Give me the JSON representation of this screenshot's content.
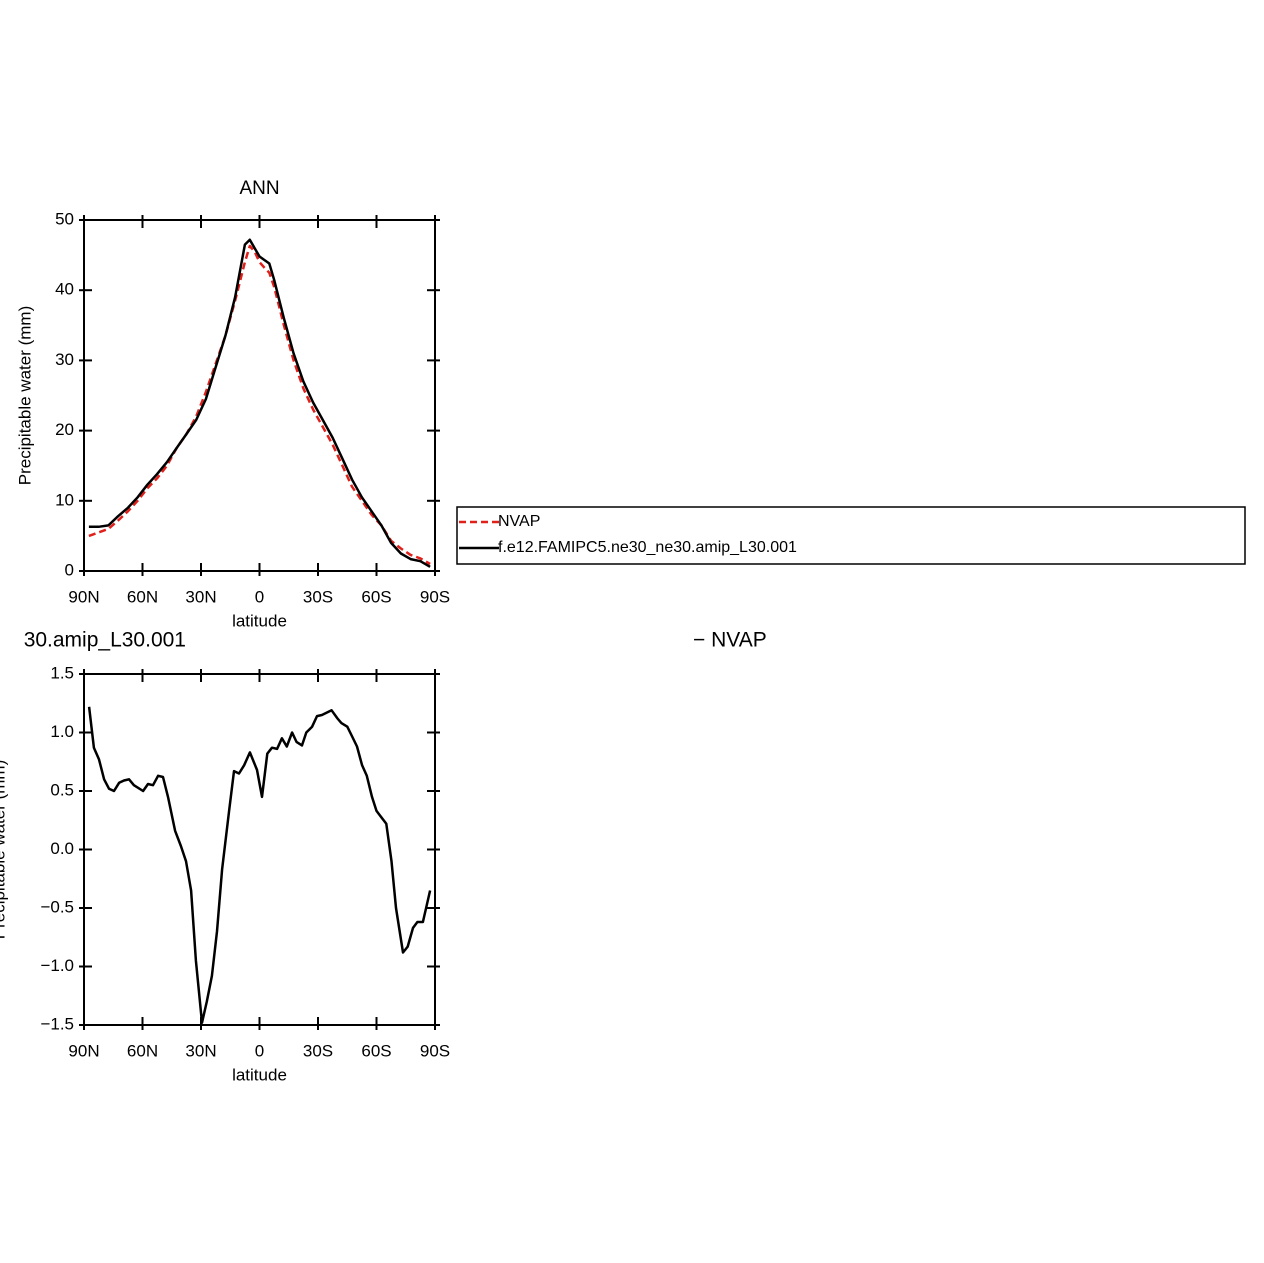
{
  "chart_data": [
    {
      "type": "line",
      "title": "ANN",
      "xlabel": "latitude",
      "ylabel": "Precipitable water (mm)",
      "xlim": [
        90,
        -90
      ],
      "xticks": [
        {
          "value": 90,
          "label": "90N"
        },
        {
          "value": 60,
          "label": "60N"
        },
        {
          "value": 30,
          "label": "30N"
        },
        0,
        {
          "value": -30,
          "label": "30S"
        },
        {
          "value": -60,
          "label": "60S"
        },
        {
          "value": -90,
          "label": "90S"
        }
      ],
      "ylim": [
        0,
        50
      ],
      "yticks": [
        0,
        10,
        20,
        30,
        40,
        50
      ],
      "legend": "right",
      "x": [
        87.5,
        82.5,
        77.5,
        72.5,
        67.5,
        62.5,
        57.5,
        52.5,
        47.5,
        42.5,
        37.5,
        32.5,
        27.5,
        22.5,
        17.5,
        12.5,
        7.5,
        5,
        2.5,
        0,
        -2.5,
        -5,
        -7.5,
        -12.5,
        -17.5,
        -22.5,
        -27.5,
        -32.5,
        -37.5,
        -42.5,
        -47.5,
        -52.5,
        -57.5,
        -62.5,
        -67.5,
        -72.5,
        -77.5,
        -82.5,
        -87.5
      ],
      "series": [
        {
          "name": "NVAP",
          "color": "#e0201b",
          "dashed": true,
          "values": [
            5.0,
            5.5,
            6.0,
            7.2,
            8.5,
            10,
            11.8,
            13.2,
            15,
            17.5,
            19.5,
            22,
            25.5,
            29.5,
            33.5,
            38.5,
            44,
            46.3,
            45.5,
            44,
            43.2,
            42.5,
            40.5,
            35,
            30,
            26,
            23,
            20.5,
            18,
            15,
            12,
            10,
            8,
            6.5,
            4.3,
            3.2,
            2.3,
            1.8,
            1.0
          ]
        },
        {
          "name": "f.e12.FAMIPC5.ne30_ne30.amip_L30.001",
          "color": "#000000",
          "dashed": false,
          "values": [
            6.3,
            6.3,
            6.5,
            7.8,
            9.0,
            10.5,
            12.3,
            13.8,
            15.5,
            17.5,
            19.5,
            21.5,
            24.5,
            29,
            33.5,
            39,
            46.5,
            47.2,
            46,
            44.8,
            44.3,
            43.8,
            41.5,
            36,
            31,
            27,
            24,
            21.5,
            19,
            16,
            13,
            10.5,
            8.5,
            6.5,
            4,
            2.5,
            1.7,
            1.4,
            0.6
          ]
        }
      ]
    },
    {
      "type": "line",
      "left_title": "30.amip_L30.001",
      "right_title": "− NVAP",
      "xlabel": "latitude",
      "ylabel": "Precipitable water (mm)",
      "xlim": [
        90,
        -90
      ],
      "xticks": [
        {
          "value": 90,
          "label": "90N"
        },
        {
          "value": 60,
          "label": "60N"
        },
        {
          "value": 30,
          "label": "30N"
        },
        0,
        {
          "value": -30,
          "label": "30S"
        },
        {
          "value": -60,
          "label": "60S"
        },
        {
          "value": -90,
          "label": "90S"
        }
      ],
      "ylim": [
        -1.5,
        1.5
      ],
      "yticks": [
        {
          "value": -1.5,
          "label": "−1.5"
        },
        {
          "value": -1,
          "label": "−1.0"
        },
        {
          "value": -0.5,
          "label": "−0.5"
        },
        {
          "value": 0,
          "label": "0.0"
        },
        0.5,
        {
          "value": 1,
          "label": "1.0"
        },
        1.5
      ],
      "x": [
        87.4,
        84.9,
        82.3,
        79.7,
        77.2,
        74.6,
        72,
        69.5,
        66.9,
        64.4,
        59.7,
        57.2,
        54.6,
        52,
        49.5,
        46.9,
        43.3,
        40.3,
        37.7,
        35.1,
        32.6,
        29.5,
        27,
        24.4,
        21.8,
        19.2,
        15.6,
        13.1,
        10.5,
        7.9,
        4.9,
        1.3,
        -1.3,
        -4,
        -6.4,
        -9,
        -11.5,
        -14,
        -16.7,
        -19,
        -21.8,
        -24,
        -27,
        -29.5,
        -32,
        -37,
        -40,
        -42,
        -45,
        -47.4,
        -50,
        -52.6,
        -55,
        -57.7,
        -60,
        -65,
        -67.7,
        -70,
        -73.6,
        -76,
        -78.7,
        -81,
        -83.8,
        -87.5
      ],
      "series": [
        {
          "color": "#000000",
          "dashed": false,
          "values": [
            1.22,
            0.87,
            0.77,
            0.6,
            0.52,
            0.5,
            0.57,
            0.59,
            0.6,
            0.55,
            0.5,
            0.56,
            0.55,
            0.63,
            0.62,
            0.45,
            0.16,
            0.03,
            -0.1,
            -0.35,
            -0.95,
            -1.48,
            -1.3,
            -1.08,
            -0.7,
            -0.17,
            0.33,
            0.67,
            0.65,
            0.72,
            0.83,
            0.68,
            0.45,
            0.82,
            0.87,
            0.86,
            0.95,
            0.88,
            1.0,
            0.92,
            0.89,
            1.0,
            1.05,
            1.14,
            1.15,
            1.19,
            1.12,
            1.08,
            1.05,
            0.97,
            0.88,
            0.72,
            0.63,
            0.45,
            0.33,
            0.22,
            -0.1,
            -0.5,
            -0.88,
            -0.83,
            -0.67,
            -0.62,
            -0.62,
            -0.35
          ]
        }
      ]
    }
  ]
}
